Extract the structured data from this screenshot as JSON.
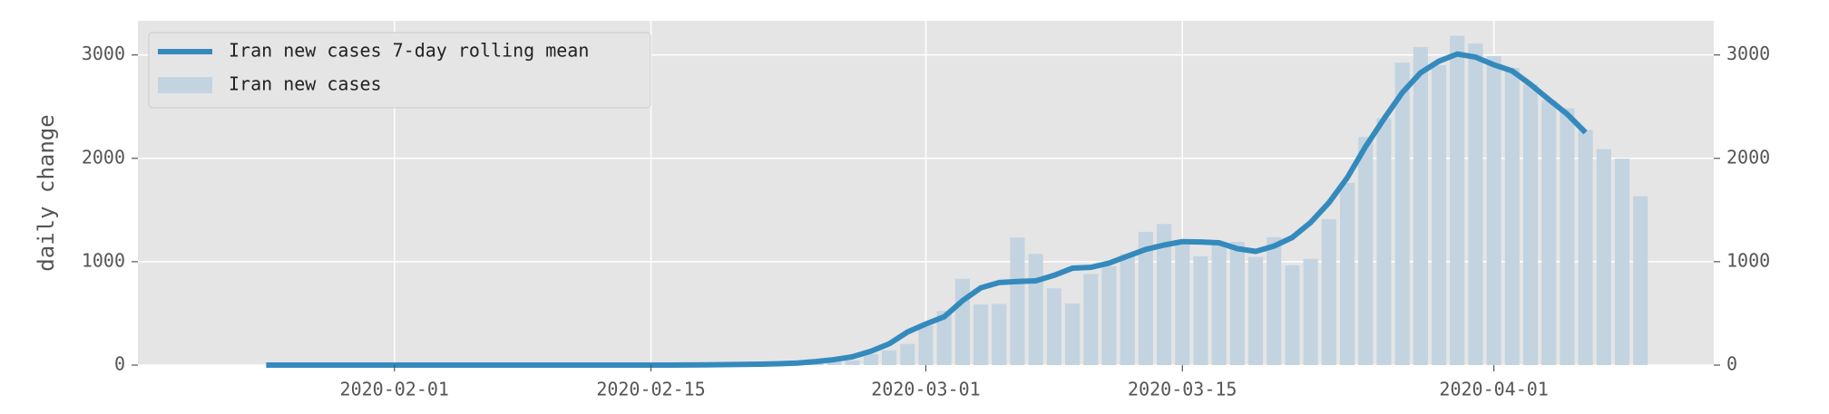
{
  "chart_data": {
    "type": "bar-line",
    "ylabel": "daily change",
    "x": [
      "2020-01-22",
      "2020-01-23",
      "2020-01-24",
      "2020-01-25",
      "2020-01-26",
      "2020-01-27",
      "2020-01-28",
      "2020-01-29",
      "2020-01-30",
      "2020-01-31",
      "2020-02-01",
      "2020-02-02",
      "2020-02-03",
      "2020-02-04",
      "2020-02-05",
      "2020-02-06",
      "2020-02-07",
      "2020-02-08",
      "2020-02-09",
      "2020-02-10",
      "2020-02-11",
      "2020-02-12",
      "2020-02-13",
      "2020-02-14",
      "2020-02-15",
      "2020-02-16",
      "2020-02-17",
      "2020-02-18",
      "2020-02-19",
      "2020-02-20",
      "2020-02-21",
      "2020-02-22",
      "2020-02-23",
      "2020-02-24",
      "2020-02-25",
      "2020-02-26",
      "2020-02-27",
      "2020-02-28",
      "2020-02-29",
      "2020-03-01",
      "2020-03-02",
      "2020-03-03",
      "2020-03-04",
      "2020-03-05",
      "2020-03-06",
      "2020-03-07",
      "2020-03-08",
      "2020-03-09",
      "2020-03-10",
      "2020-03-11",
      "2020-03-12",
      "2020-03-13",
      "2020-03-14",
      "2020-03-15",
      "2020-03-16",
      "2020-03-17",
      "2020-03-18",
      "2020-03-19",
      "2020-03-20",
      "2020-03-21",
      "2020-03-22",
      "2020-03-23",
      "2020-03-24",
      "2020-03-25",
      "2020-03-26",
      "2020-03-27",
      "2020-03-28",
      "2020-03-29",
      "2020-03-30",
      "2020-03-31",
      "2020-04-01",
      "2020-04-02",
      "2020-04-03",
      "2020-04-04",
      "2020-04-05",
      "2020-04-06",
      "2020-04-07",
      "2020-04-08",
      "2020-04-09"
    ],
    "series": [
      {
        "name": "Iran new cases 7-day rolling mean",
        "type": "line",
        "color": "#348abd",
        "values": [
          null,
          null,
          null,
          0,
          0,
          0,
          0,
          0,
          0,
          0,
          0,
          0,
          0,
          0,
          0,
          0,
          0,
          0,
          0,
          0,
          0,
          0,
          0,
          0,
          0,
          0.3,
          0.7,
          2.6,
          4,
          6.1,
          8.7,
          13.6,
          19.6,
          34.3,
          52.9,
          80.7,
          133.6,
          205.7,
          320.1,
          397.6,
          466.9,
          622.7,
          747.1,
          798.3,
          808.6,
          815.1,
          868.3,
          937.4,
          945.3,
          986.6,
          1053.1,
          1118.6,
          1161,
          1194.4,
          1190.3,
          1182.9,
          1125.9,
          1100,
          1151.1,
          1234.6,
          1379.4,
          1571.3,
          1812.6,
          2114,
          2381.6,
          2635.1,
          2827.7,
          2939.4,
          3008.9,
          2978.7,
          2905,
          2845.3,
          2715,
          2569.1,
          2427.6,
          2250.3,
          null,
          null,
          null
        ]
      },
      {
        "name": "Iran new cases",
        "type": "bar",
        "color": "#c3d4e0",
        "values": [
          0,
          0,
          0,
          0,
          0,
          0,
          0,
          0,
          0,
          0,
          0,
          0,
          0,
          0,
          0,
          0,
          0,
          0,
          0,
          0,
          0,
          0,
          0,
          0,
          0,
          0,
          0,
          0,
          2,
          3,
          13,
          10,
          15,
          18,
          34,
          44,
          106,
          143,
          205,
          385,
          523,
          835,
          586,
          591,
          1234,
          1076,
          743,
          595,
          881,
          958,
          1075,
          1289,
          1365,
          1209,
          1053,
          1178,
          1192,
          1046,
          1237,
          966,
          1028,
          1411,
          1762,
          2206,
          2389,
          2926,
          3076,
          2901,
          3186,
          3110,
          2988,
          2875,
          2715,
          2560,
          2483,
          2274,
          2089,
          1997,
          1634
        ]
      }
    ],
    "xlim": [
      "2020-01-18",
      "2020-04-13"
    ],
    "xticks": [
      "2020-02-01",
      "2020-02-15",
      "2020-03-01",
      "2020-03-15",
      "2020-04-01"
    ],
    "ylim": [
      0,
      3330
    ],
    "yticks": [
      0,
      1000,
      2000,
      3000
    ],
    "y2lim": [
      0,
      3330
    ],
    "y2ticks": [
      0,
      1000,
      2000,
      3000
    ],
    "grid": true,
    "legend": "upper left"
  }
}
